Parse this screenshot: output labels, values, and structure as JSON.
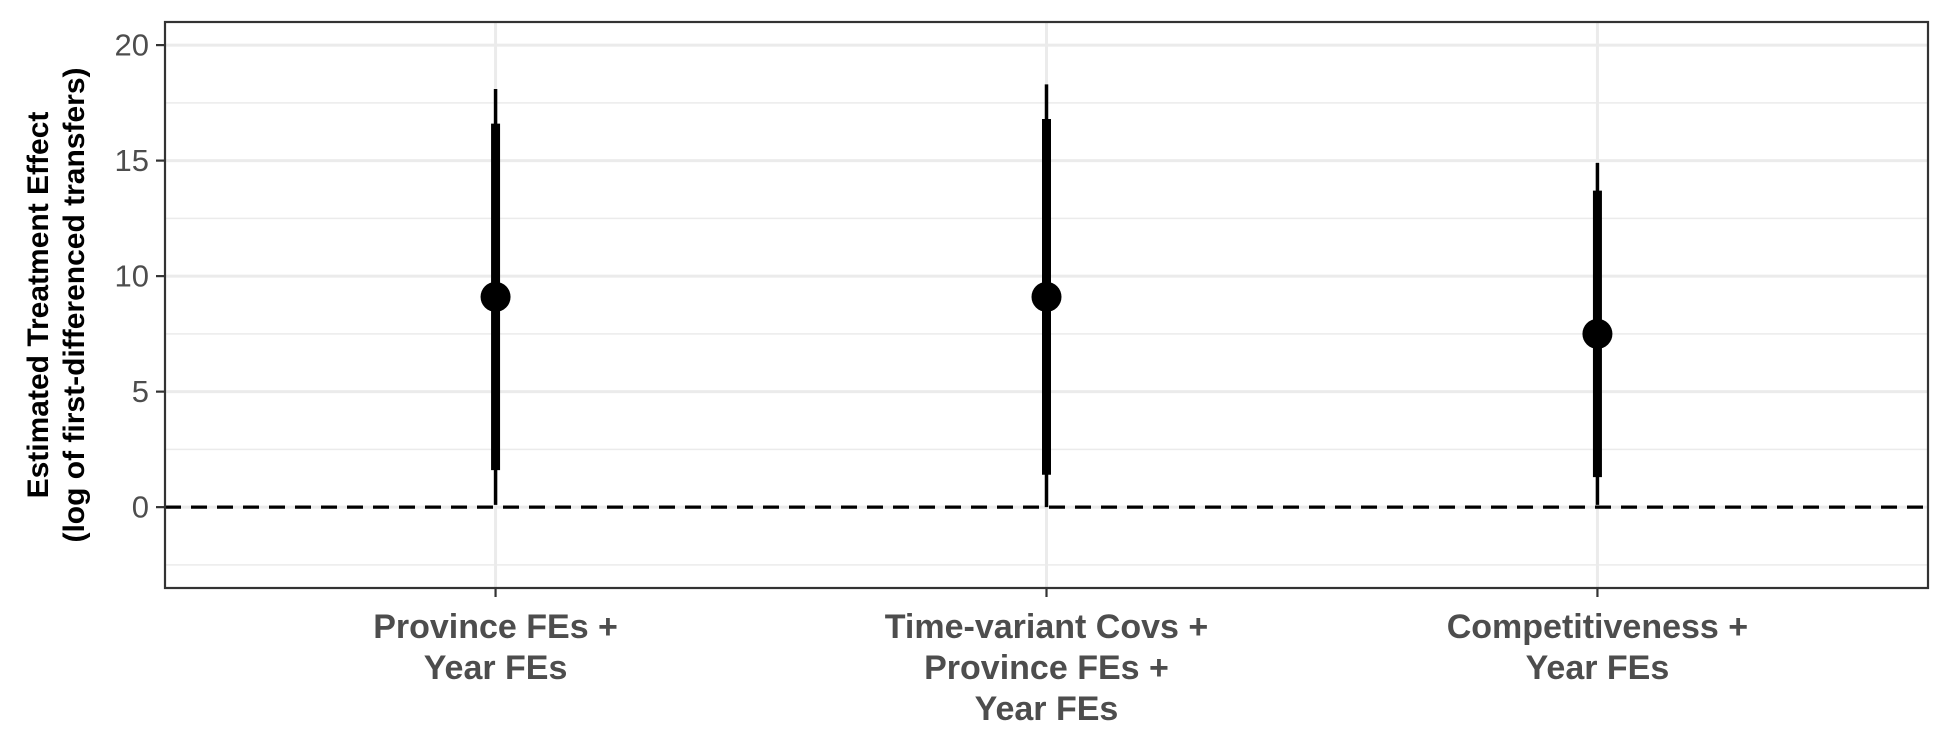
{
  "chart_data": {
    "type": "pointrange",
    "title": "",
    "xlabel": "",
    "ylabel": [
      "Estimated Treatment Effect",
      "(log of first-differenced transfers)"
    ],
    "ylim": [
      -3.5,
      21
    ],
    "yticks": [
      0,
      5,
      10,
      15,
      20
    ],
    "y_minor_gridlines": [
      -2.5,
      2.5,
      7.5,
      12.5,
      17.5
    ],
    "grid": true,
    "legend": "none",
    "reference_line": {
      "y": 0,
      "style": "dashed"
    },
    "categories": [
      [
        "Province FEs +",
        "Year FEs"
      ],
      [
        "Time-variant Covs +",
        "Province FEs +",
        "Year FEs"
      ],
      [
        "Competitiveness +",
        "Year FEs"
      ]
    ],
    "points": [
      {
        "estimate": 9.1,
        "ci90": [
          1.6,
          16.6
        ],
        "ci95": [
          0.1,
          18.1
        ]
      },
      {
        "estimate": 9.1,
        "ci90": [
          1.4,
          16.8
        ],
        "ci95": [
          0.0,
          18.3
        ]
      },
      {
        "estimate": 7.5,
        "ci90": [
          1.3,
          13.7
        ],
        "ci95": [
          0.1,
          14.9
        ]
      }
    ],
    "colors": {
      "marks": "#000000",
      "grid": "#ebebeb",
      "axis_text": "#4d4d4d",
      "panel_border": "#333333"
    }
  }
}
